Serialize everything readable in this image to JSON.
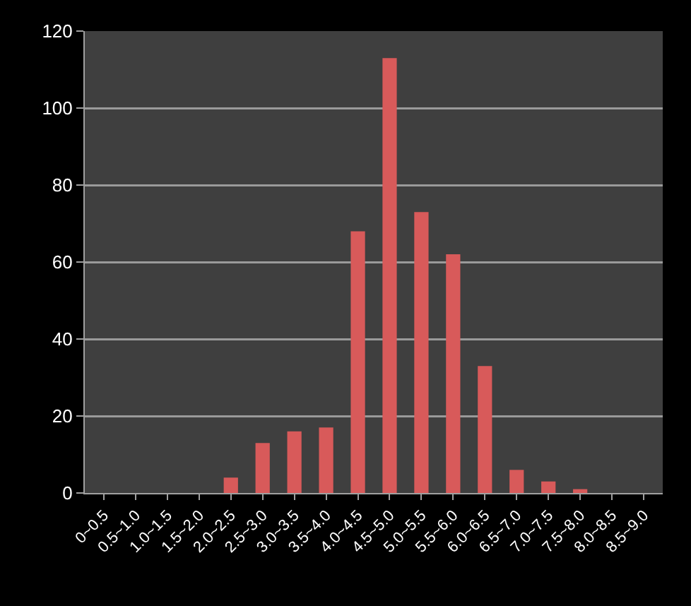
{
  "chart_data": {
    "type": "bar",
    "categories": [
      "0~0.5",
      "0.5~1.0",
      "1.0~1.5",
      "1.5~2.0",
      "2.0~2.5",
      "2.5~3.0",
      "3.0~3.5",
      "3.5~4.0",
      "4.0~4.5",
      "4.5~5.0",
      "5.0~5.5",
      "5.5~6.0",
      "6.0~6.5",
      "6.5~7.0",
      "7.0~7.5",
      "7.5~8.0",
      "8.0~8.5",
      "8.5~9.0"
    ],
    "values": [
      0,
      0,
      0,
      0,
      4,
      13,
      16,
      17,
      68,
      113,
      73,
      62,
      33,
      6,
      3,
      1,
      0,
      0
    ],
    "color": "#d85a5a",
    "ylim": [
      0,
      120
    ],
    "yticks": [
      0,
      20,
      40,
      60,
      80,
      100,
      120
    ],
    "grid": "y"
  }
}
